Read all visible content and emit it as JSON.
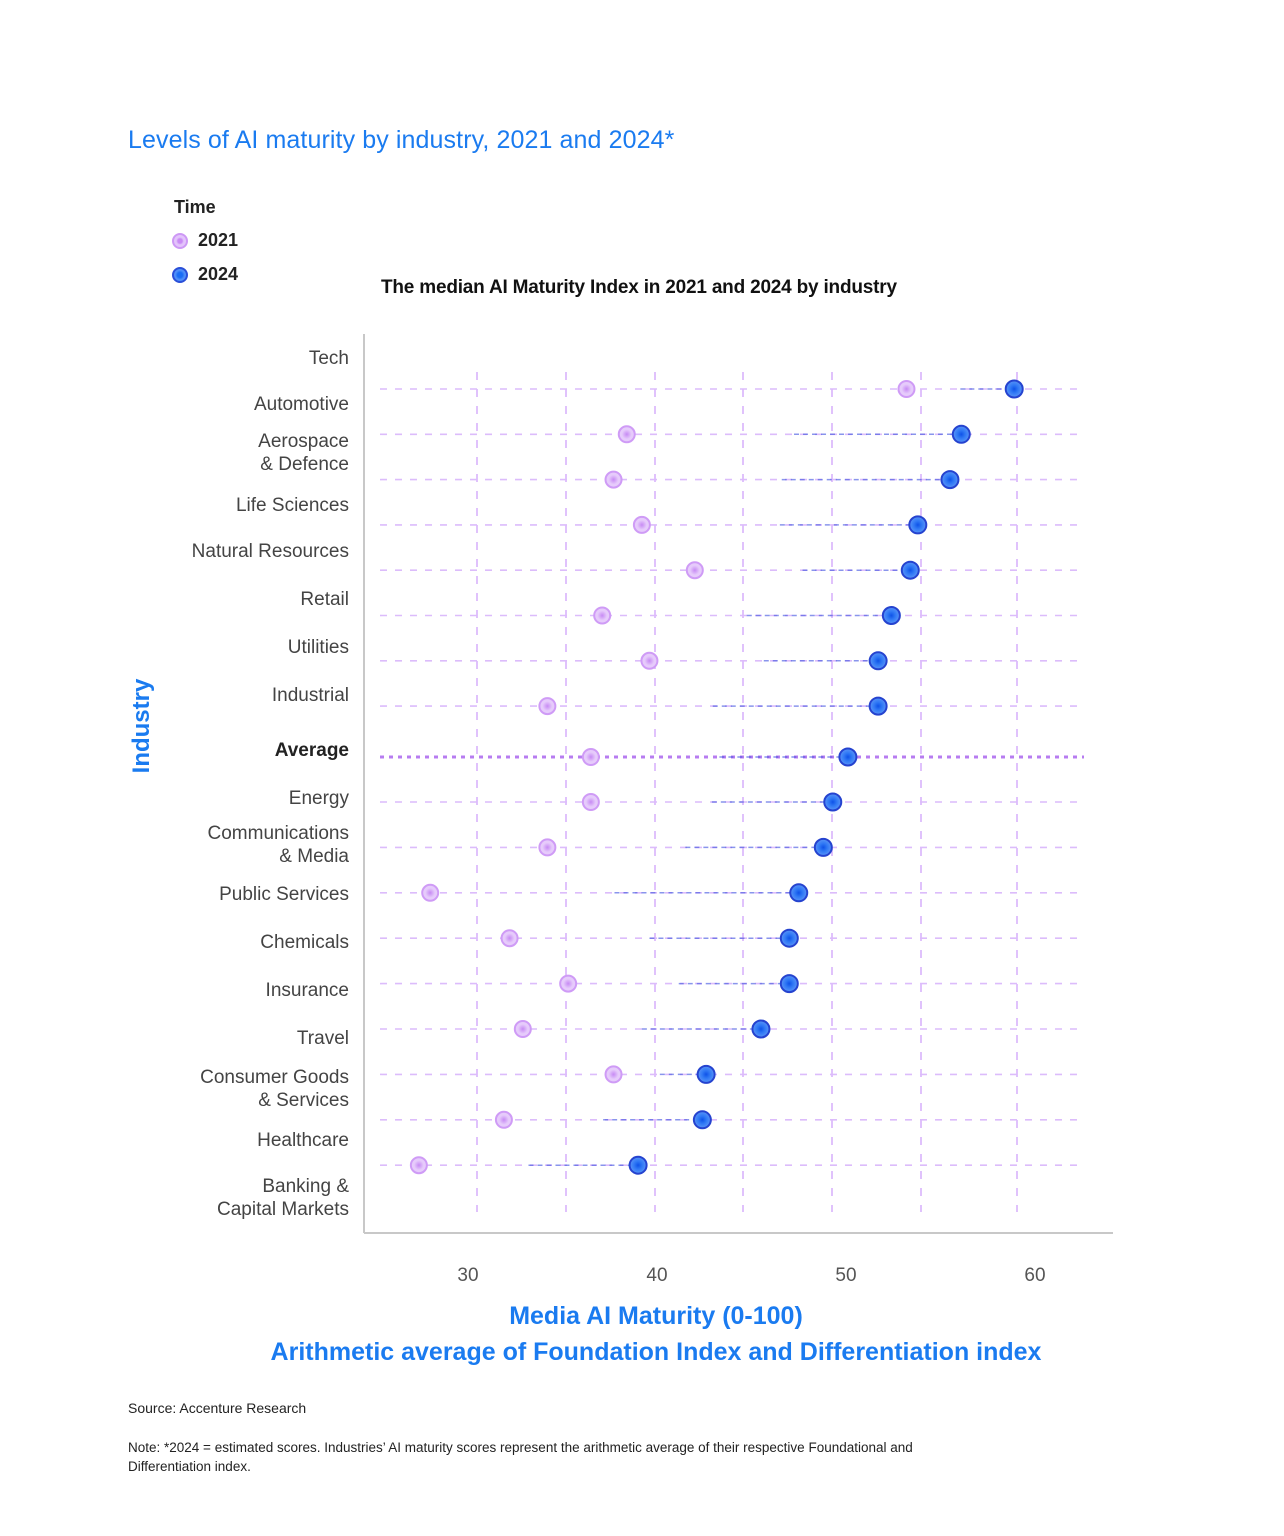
{
  "page": {
    "title": "Levels of AI maturity by industry, 2021 and 2024*",
    "source": "Source: Accenture Research",
    "note": "Note: *2024 = estimated scores. Industries’ AI maturity scores represent the arithmetic average of their respective Foundational and Differentiation index."
  },
  "legend": {
    "title": "Time",
    "items": [
      {
        "label": "2021",
        "color": "#d9a8f7"
      },
      {
        "label": "2024",
        "color": "#2563eb"
      }
    ]
  },
  "chart_data": {
    "type": "dumbbell",
    "title": "The median AI Maturity Index in 2021 and 2024 by industry",
    "xlabel": "Media AI Maturity (0-100)",
    "xlabel_sub": "Arithmetic average of Foundation Index and Differentiation index",
    "ylabel": "Industry",
    "xlim": [
      25,
      63
    ],
    "xticks": [
      30,
      40,
      50,
      60
    ],
    "grid": true,
    "legend_position": "top-left",
    "series_names": [
      "2021",
      "2024"
    ],
    "colors": {
      "2021": "#d9a8f7",
      "2024": "#2563eb",
      "line": "#b57af0"
    },
    "categories": [
      {
        "label": "Tech",
        "v2021": 53.2,
        "v2024": 58.9
      },
      {
        "label": "Automotive",
        "v2021": 38.4,
        "v2024": 56.1
      },
      {
        "label": "Aerospace\n& Defence",
        "v2021": 37.7,
        "v2024": 55.5
      },
      {
        "label": "Life Sciences",
        "v2021": 39.2,
        "v2024": 53.8
      },
      {
        "label": "Natural Resources",
        "v2021": 42.0,
        "v2024": 53.4
      },
      {
        "label": "Retail",
        "v2021": 37.1,
        "v2024": 52.4
      },
      {
        "label": "Utilities",
        "v2021": 39.6,
        "v2024": 51.7
      },
      {
        "label": "Industrial",
        "v2021": 34.2,
        "v2024": 51.7
      },
      {
        "label": "Average",
        "v2021": 36.5,
        "v2024": 50.1,
        "is_average": true
      },
      {
        "label": "Energy",
        "v2021": 36.5,
        "v2024": 49.3
      },
      {
        "label": "Communications\n& Media",
        "v2021": 34.2,
        "v2024": 48.8
      },
      {
        "label": "Public Services",
        "v2021": 28.0,
        "v2024": 47.5
      },
      {
        "label": "Chemicals",
        "v2021": 32.2,
        "v2024": 47.0
      },
      {
        "label": "Insurance",
        "v2021": 35.3,
        "v2024": 47.0
      },
      {
        "label": "Travel",
        "v2021": 32.9,
        "v2024": 45.5
      },
      {
        "label": "Consumer Goods\n& Services",
        "v2021": 37.7,
        "v2024": 42.6
      },
      {
        "label": "Healthcare",
        "v2021": 31.9,
        "v2024": 42.4
      },
      {
        "label": "Banking &\nCapital Markets",
        "v2021": 27.4,
        "v2024": 39.0
      }
    ]
  }
}
